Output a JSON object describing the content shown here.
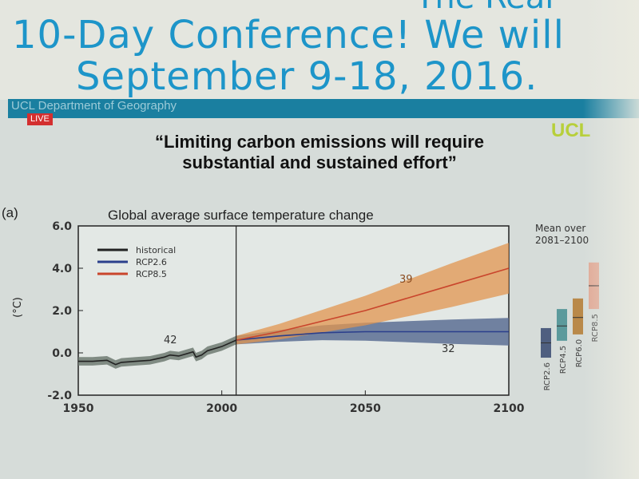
{
  "headline": {
    "line0": "The Real",
    "line1": "10-Day Conference! We will",
    "line2": "September 9-18, 2016."
  },
  "banner": {
    "department": "UCL Department of Geography",
    "live_badge": "LIVE",
    "logo": "UCL"
  },
  "quote": {
    "line1": "“Limiting carbon emissions will require",
    "line2": "substantial and sustained effort”"
  },
  "chart_data": {
    "type": "line",
    "panel_label": "(a)",
    "title": "Global average surface temperature change",
    "ylabel": "(°C)",
    "xlim": [
      1950,
      2100
    ],
    "ylim": [
      -2,
      6
    ],
    "xticks": [
      1950,
      2000,
      2050,
      2100
    ],
    "yticks": [
      "-2.0",
      "0.0",
      "2.0",
      "4.0",
      "6.0"
    ],
    "divider_year": 2005,
    "legend": {
      "placement": "top-left",
      "entries": [
        "historical",
        "RCP2.6",
        "RCP8.5"
      ]
    },
    "series": [
      {
        "name": "historical",
        "color": "#222222",
        "band_color": "#6f7a72",
        "x": [
          1950,
          1955,
          1960,
          1963,
          1965,
          1970,
          1975,
          1980,
          1982,
          1985,
          1990,
          1991,
          1993,
          1995,
          2000,
          2005
        ],
        "y": [
          -0.4,
          -0.4,
          -0.35,
          -0.55,
          -0.45,
          -0.4,
          -0.35,
          -0.2,
          -0.1,
          -0.15,
          0.05,
          -0.2,
          -0.1,
          0.1,
          0.3,
          0.6
        ],
        "spread": 0.2,
        "model_count": "42"
      },
      {
        "name": "RCP2.6",
        "color": "#2b3f8c",
        "band_color": "#5c6e94",
        "x": [
          2005,
          2020,
          2035,
          2050,
          2065,
          2080,
          2100
        ],
        "y": [
          0.6,
          0.8,
          0.95,
          1.0,
          1.0,
          1.0,
          1.0
        ],
        "spread_end": 0.65,
        "model_count": "32"
      },
      {
        "name": "RCP8.5",
        "color": "#c9452c",
        "band_color": "#e1954f",
        "x": [
          2005,
          2020,
          2035,
          2050,
          2065,
          2080,
          2100
        ],
        "y": [
          0.6,
          1.0,
          1.5,
          2.0,
          2.6,
          3.2,
          4.0
        ],
        "spread_end": 1.2,
        "model_count": "39"
      }
    ],
    "mean_2081_2100": {
      "title_line1": "Mean over",
      "title_line2": "2081–2100",
      "bars": [
        {
          "name": "RCP2.6",
          "low": 0.3,
          "mean": 1.0,
          "high": 1.7,
          "color": "#4f5f80"
        },
        {
          "name": "RCP4.5",
          "low": 1.1,
          "mean": 1.8,
          "high": 2.6,
          "color": "#5c9a9c"
        },
        {
          "name": "RCP6.0",
          "low": 1.4,
          "mean": 2.2,
          "high": 3.1,
          "color": "#b9894a"
        },
        {
          "name": "RCP8.5",
          "low": 2.6,
          "mean": 3.7,
          "high": 4.8,
          "color": "#e0a895"
        }
      ]
    }
  }
}
